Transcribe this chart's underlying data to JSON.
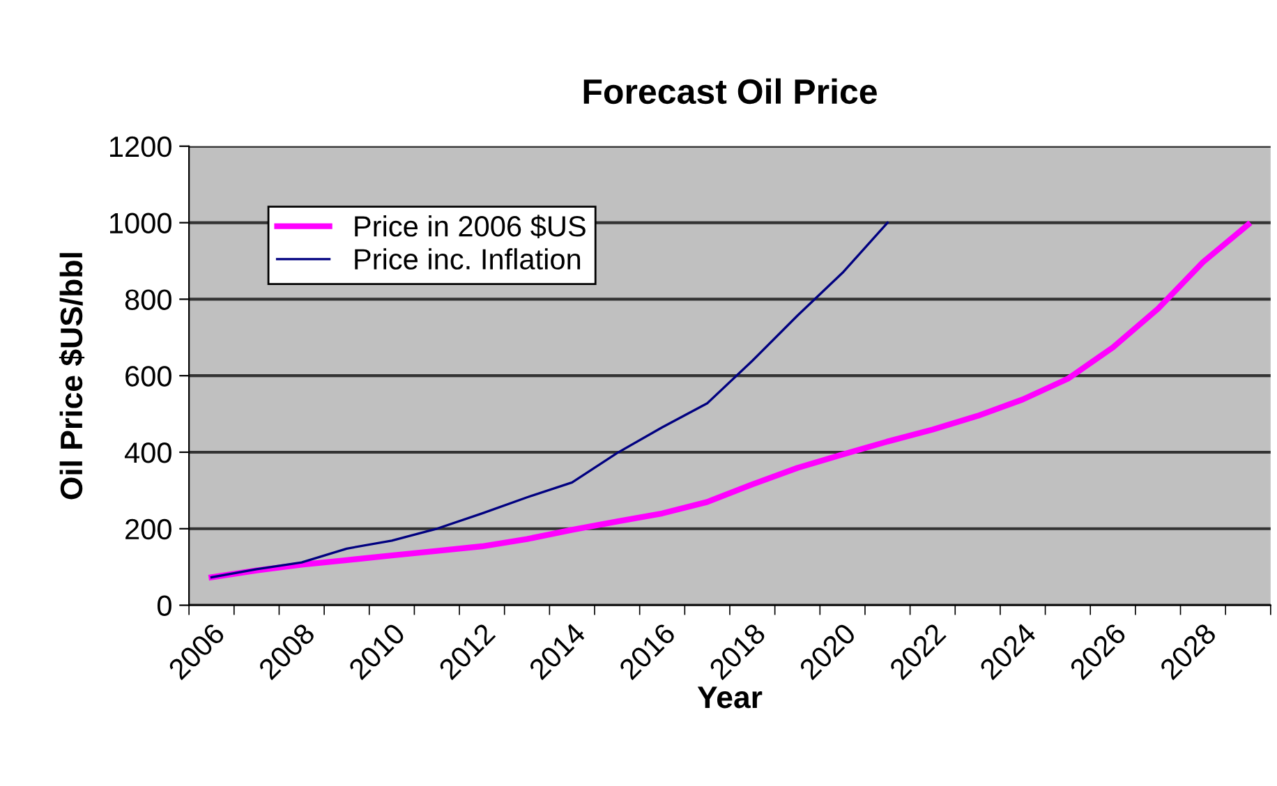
{
  "chart_data": {
    "type": "line",
    "title": "Forecast Oil Price",
    "xlabel": "Year",
    "ylabel": "Oil Price $US/bbl",
    "categories": [
      "2006",
      null,
      "2008",
      null,
      "2010",
      null,
      "2012",
      null,
      "2014",
      null,
      "2016",
      null,
      "2018",
      null,
      "2020",
      null,
      "2022",
      null,
      "2024",
      null,
      "2026",
      null,
      "2028",
      null
    ],
    "series": [
      {
        "name": "Price in 2006 $US",
        "color": "#ff00ff",
        "values": [
          73,
          91,
          106,
          118,
          130,
          142,
          154,
          173,
          197,
          219,
          240,
          270,
          316,
          359,
          394,
          428,
          459,
          495,
          538,
          592,
          674,
          775,
          897,
          995
        ]
      },
      {
        "name": "Price inc. Inflation",
        "color": "#000080",
        "values": [
          73,
          94,
          112,
          148,
          169,
          200,
          240,
          282,
          321,
          398,
          465,
          528,
          639,
          757,
          869,
          1000,
          null,
          null,
          null,
          null,
          null,
          null,
          null,
          null
        ]
      }
    ],
    "ylim": [
      0,
      1200
    ],
    "yticks": [
      0,
      200,
      400,
      600,
      800,
      1000,
      1200
    ],
    "grid": "y",
    "legend": "top left",
    "marker": "none",
    "line_style": "solid"
  }
}
